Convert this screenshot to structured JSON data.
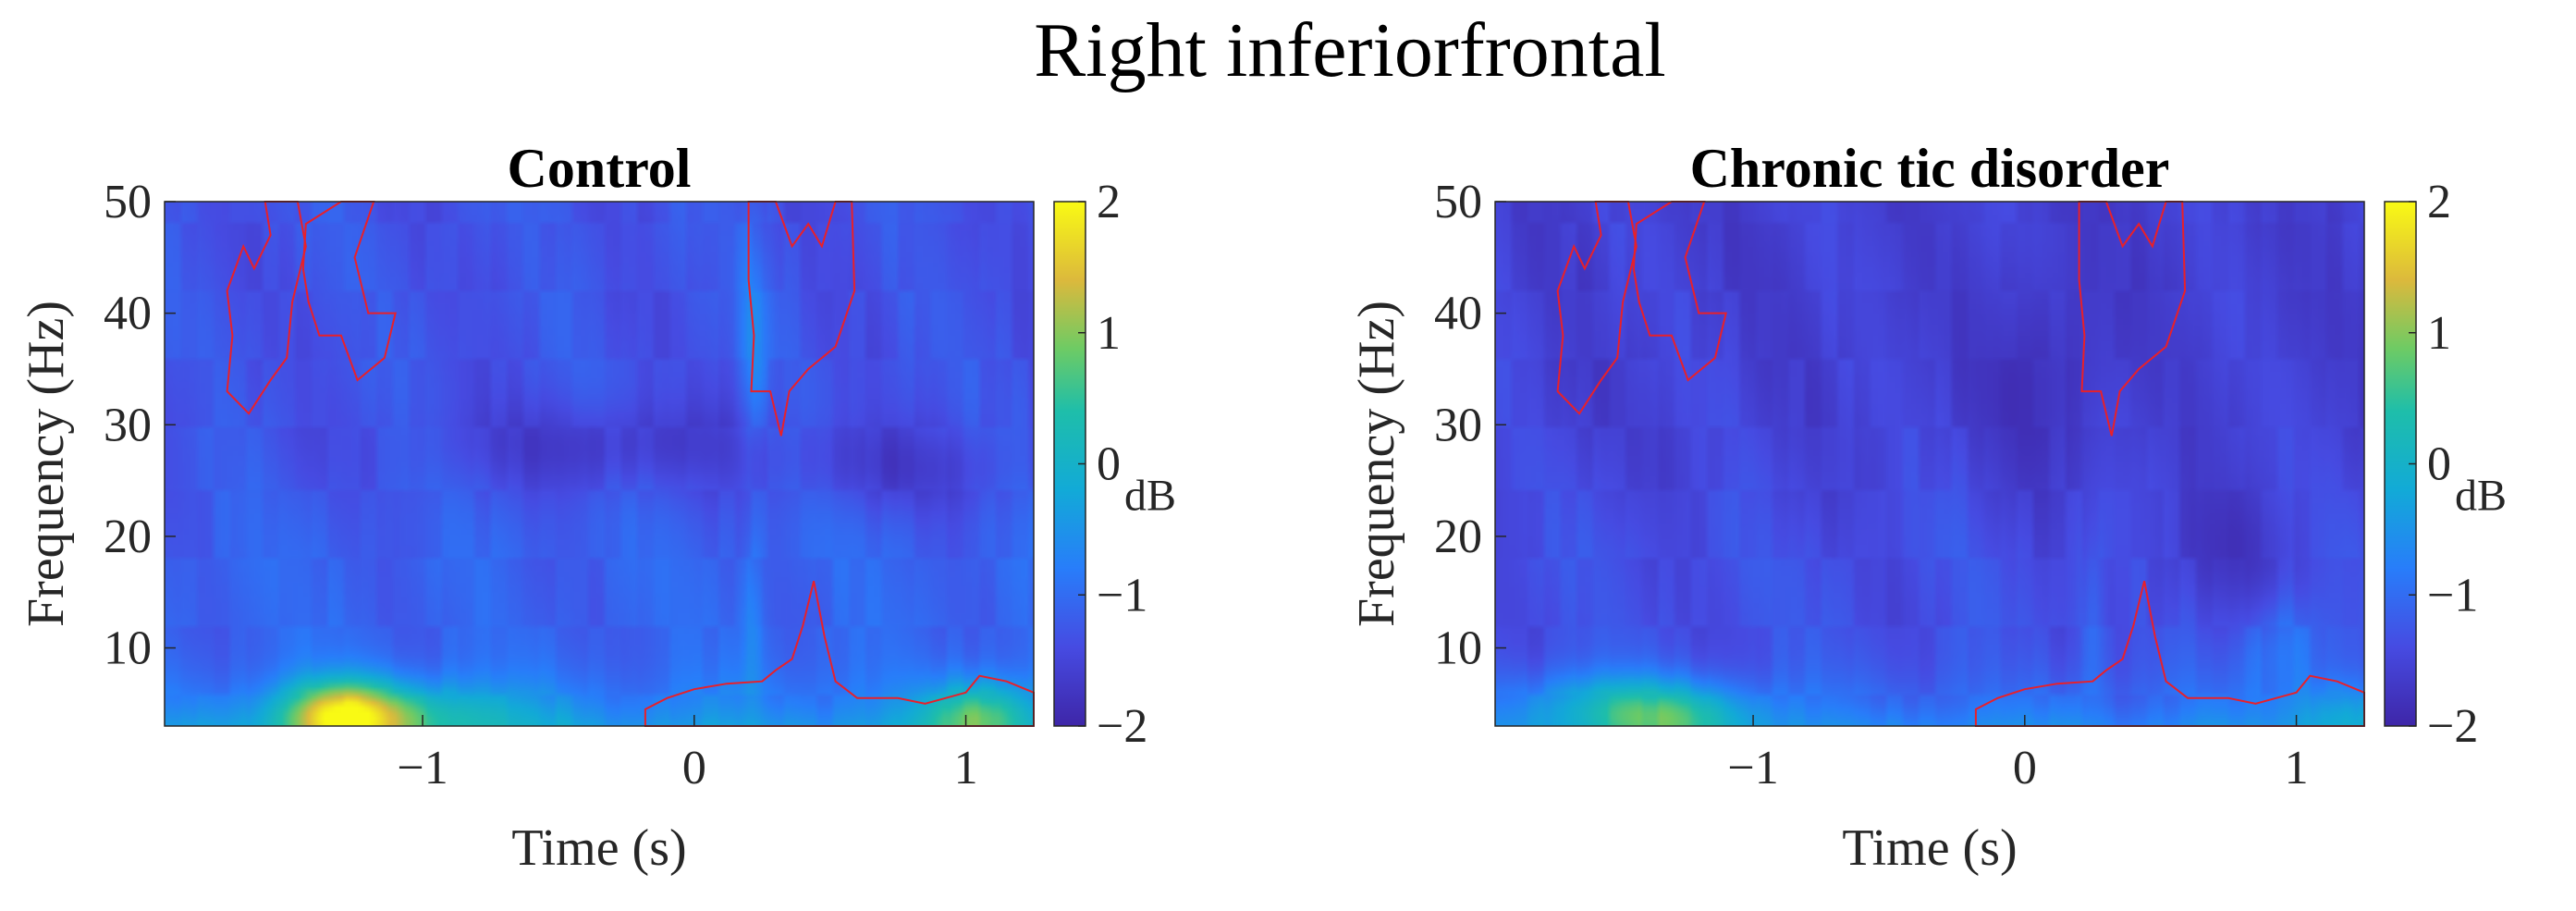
{
  "figure_title": "Right inferiorfrontal",
  "chart_data": [
    {
      "type": "heatmap",
      "title": "Control",
      "xlabel": "Time (s)",
      "ylabel": "Frequency (Hz)",
      "xlim": [
        -1.95,
        1.25
      ],
      "ylim": [
        3,
        50
      ],
      "x_ticks": [
        -1,
        0,
        1
      ],
      "x_tick_labels": [
        "−1",
        "0",
        "1"
      ],
      "y_ticks": [
        10,
        20,
        30,
        40,
        50
      ],
      "y_tick_labels": [
        "10",
        "20",
        "30",
        "40",
        "50"
      ],
      "colorbar": {
        "label": "dB",
        "range": [
          -2,
          2
        ],
        "ticks": [
          2,
          1,
          0,
          -1,
          -2
        ],
        "tick_labels": [
          "2",
          "1",
          "0",
          "−1",
          "−2"
        ]
      },
      "base_level_db": -1.3,
      "features": [
        {
          "t": -1.3,
          "f": 4,
          "st": 0.22,
          "sf": 3,
          "amp": 2.3
        },
        {
          "t": -1.0,
          "f": 4,
          "st": 0.4,
          "sf": 3,
          "amp": 0.9
        },
        {
          "t": 1.05,
          "f": 4,
          "st": 0.2,
          "sf": 3,
          "amp": 1.5
        },
        {
          "t": 0.22,
          "f": 38,
          "st": 0.05,
          "sf": 10,
          "amp": 0.6
        },
        {
          "t": 0.22,
          "f": 12,
          "st": 0.04,
          "sf": 8,
          "amp": 0.5
        },
        {
          "t": -0.3,
          "f": 28,
          "st": 0.6,
          "sf": 4,
          "amp": -0.4
        },
        {
          "t": 0.8,
          "f": 26,
          "st": 0.4,
          "sf": 4,
          "amp": -0.35
        }
      ],
      "significance_color": "#e8202a"
    },
    {
      "type": "heatmap",
      "title": "Chronic tic disorder",
      "xlabel": "Time (s)",
      "ylabel": "Frequency (Hz)",
      "xlim": [
        -1.95,
        1.25
      ],
      "ylim": [
        3,
        50
      ],
      "x_ticks": [
        -1,
        0,
        1
      ],
      "x_tick_labels": [
        "−1",
        "0",
        "1"
      ],
      "y_ticks": [
        10,
        20,
        30,
        40,
        50
      ],
      "y_tick_labels": [
        "10",
        "20",
        "30",
        "40",
        "50"
      ],
      "colorbar": {
        "label": "dB",
        "range": [
          -2,
          2
        ],
        "ticks": [
          2,
          1,
          0,
          -1,
          -2
        ],
        "tick_labels": [
          "2",
          "1",
          "0",
          "−1",
          "−2"
        ]
      },
      "base_level_db": -1.55,
      "features": [
        {
          "t": -1.3,
          "f": 4,
          "st": 0.3,
          "sf": 3,
          "amp": 1.3
        },
        {
          "t": -1.6,
          "f": 5,
          "st": 0.3,
          "sf": 3,
          "amp": 0.7
        },
        {
          "t": 0.95,
          "f": 10,
          "st": 0.15,
          "sf": 5,
          "amp": 0.6
        },
        {
          "t": 1.15,
          "f": 4,
          "st": 0.15,
          "sf": 3,
          "amp": 0.7
        },
        {
          "t": 0.25,
          "f": 12,
          "st": 0.05,
          "sf": 8,
          "amp": 0.4
        },
        {
          "t": 0.1,
          "f": 35,
          "st": 0.2,
          "sf": 10,
          "amp": -0.3
        },
        {
          "t": 0.7,
          "f": 18,
          "st": 0.3,
          "sf": 6,
          "amp": -0.3
        }
      ],
      "significance_color": "#e8202a"
    }
  ],
  "significance_regions": [
    [
      [
        -1.72,
        33
      ],
      [
        -1.7,
        38
      ],
      [
        -1.72,
        42
      ],
      [
        -1.66,
        46
      ],
      [
        -1.62,
        44
      ],
      [
        -1.56,
        47
      ],
      [
        -1.58,
        50
      ],
      [
        -1.46,
        50
      ],
      [
        -1.43,
        46
      ],
      [
        -1.48,
        41
      ],
      [
        -1.5,
        36
      ],
      [
        -1.56,
        34
      ],
      [
        -1.64,
        31
      ]
    ],
    [
      [
        -1.44,
        44
      ],
      [
        -1.43,
        48
      ],
      [
        -1.3,
        50
      ],
      [
        -1.18,
        50
      ],
      [
        -1.25,
        45
      ],
      [
        -1.2,
        40
      ],
      [
        -1.1,
        40
      ],
      [
        -1.14,
        36
      ],
      [
        -1.24,
        34
      ],
      [
        -1.3,
        38
      ],
      [
        -1.38,
        38
      ],
      [
        -1.42,
        41
      ]
    ],
    [
      [
        0.2,
        50
      ],
      [
        0.2,
        43
      ],
      [
        0.22,
        38
      ],
      [
        0.21,
        33
      ],
      [
        0.28,
        33
      ],
      [
        0.32,
        29
      ],
      [
        0.35,
        33
      ],
      [
        0.42,
        35
      ],
      [
        0.52,
        37
      ],
      [
        0.59,
        42
      ],
      [
        0.58,
        50
      ],
      [
        0.52,
        50
      ],
      [
        0.47,
        46
      ],
      [
        0.42,
        48
      ],
      [
        0.36,
        46
      ],
      [
        0.3,
        50
      ]
    ],
    [
      [
        -0.18,
        3
      ],
      [
        -0.18,
        4.5
      ],
      [
        -0.1,
        5.5
      ],
      [
        0.0,
        6.3
      ],
      [
        0.12,
        6.8
      ],
      [
        0.25,
        7
      ],
      [
        0.3,
        8
      ],
      [
        0.36,
        9
      ],
      [
        0.4,
        12
      ],
      [
        0.44,
        16
      ],
      [
        0.48,
        11
      ],
      [
        0.52,
        7
      ],
      [
        0.6,
        5.5
      ],
      [
        0.75,
        5.5
      ],
      [
        0.85,
        5
      ],
      [
        1.0,
        6
      ],
      [
        1.05,
        7.5
      ],
      [
        1.15,
        7
      ],
      [
        1.25,
        6
      ],
      [
        1.25,
        3
      ]
    ]
  ]
}
